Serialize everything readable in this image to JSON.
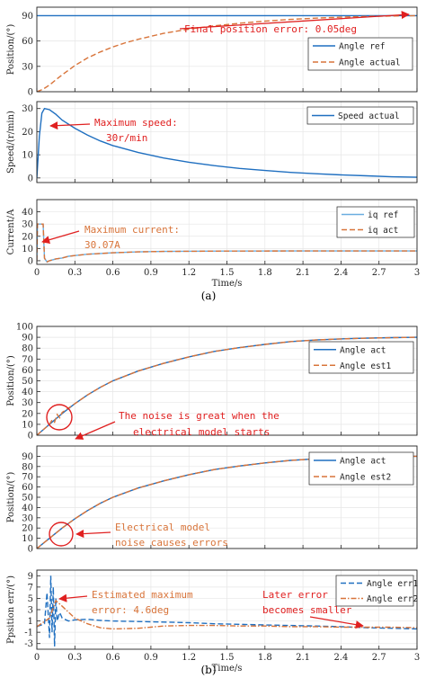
{
  "colors": {
    "blue": "#1f6fc0",
    "orange": "#d8743a",
    "red": "#e02020",
    "lightblue": "#6aaee0",
    "axis": "#222222",
    "grid": "#e6e6e6"
  },
  "captions": {
    "a": "(a)",
    "b": "(b)"
  },
  "xlabel": "Time/s",
  "chart_data": [
    {
      "type": "line",
      "ylabel": "Position/(°)",
      "xlim": [
        0,
        3
      ],
      "ylim": [
        0,
        100
      ],
      "yticks": [
        "0",
        "30",
        "60",
        "90"
      ],
      "show_xtick_labels": false,
      "legend": [
        "Angle ref",
        "Angle actual"
      ],
      "annotations": [
        "Final position error: 0.05deg"
      ],
      "series": [
        {
          "name": "Angle ref",
          "style": "solid",
          "color": "blue",
          "x": [
            0,
            3
          ],
          "y": [
            90,
            90
          ]
        },
        {
          "name": "Angle actual",
          "style": "dashed",
          "color": "orange",
          "x": [
            0,
            0.05,
            0.1,
            0.15,
            0.2,
            0.3,
            0.4,
            0.5,
            0.6,
            0.7,
            0.8,
            1.0,
            1.2,
            1.4,
            1.6,
            1.8,
            2.0,
            2.2,
            2.4,
            2.6,
            2.8,
            3.0
          ],
          "y": [
            0,
            3,
            8,
            14,
            20,
            31,
            40,
            47,
            53,
            58,
            62,
            69,
            74,
            78,
            81,
            83.5,
            85.5,
            87,
            88.2,
            89,
            89.6,
            89.95
          ]
        }
      ]
    },
    {
      "type": "line",
      "ylabel": "Speed/(r/min)",
      "xlim": [
        0,
        3
      ],
      "ylim": [
        -2,
        33
      ],
      "yticks": [
        "0",
        "10",
        "20",
        "30"
      ],
      "show_xtick_labels": false,
      "legend": [
        "Speed actual"
      ],
      "annotations": [
        "Maximum speed:",
        "30r/min"
      ],
      "series": [
        {
          "name": "Speed actual",
          "style": "solid",
          "color": "blue",
          "x": [
            0,
            0.02,
            0.04,
            0.06,
            0.1,
            0.15,
            0.2,
            0.3,
            0.4,
            0.5,
            0.6,
            0.8,
            1.0,
            1.2,
            1.4,
            1.6,
            1.8,
            2.0,
            2.2,
            2.4,
            2.6,
            2.8,
            3.0
          ],
          "y": [
            0,
            18,
            28,
            30,
            29.5,
            27.5,
            25,
            21.5,
            18.5,
            16,
            14,
            11,
            8.6,
            6.8,
            5.3,
            4.1,
            3.2,
            2.4,
            1.8,
            1.3,
            0.9,
            0.5,
            0.3
          ]
        }
      ]
    },
    {
      "type": "line",
      "ylabel": "Current/A",
      "xlim": [
        0,
        3
      ],
      "ylim": [
        -3,
        50
      ],
      "yticks": [
        "0",
        "10",
        "20",
        "30",
        "40"
      ],
      "xticks": [
        "0",
        "0.3",
        "0.6",
        "0.9",
        "1.2",
        "1.5",
        "1.8",
        "2.1",
        "2.4",
        "2.7",
        "3"
      ],
      "show_xtick_labels": true,
      "legend": [
        "iq ref",
        "iq act"
      ],
      "annotations": [
        "Maximum current:",
        "30.07A"
      ],
      "series": [
        {
          "name": "iq ref",
          "style": "solid",
          "color": "lightblue",
          "x": [
            0,
            0.005,
            0.05,
            0.06,
            0.08,
            0.1,
            0.15,
            0.2,
            0.25,
            0.3,
            0.4,
            0.5,
            0.6,
            0.8,
            1.0,
            1.5,
            2.0,
            2.5,
            3.0
          ],
          "y": [
            0,
            30,
            30,
            2,
            -1,
            0,
            1.5,
            2.2,
            3.6,
            4.2,
            5.3,
            5.9,
            6.5,
            7.2,
            7.6,
            7.9,
            8.0,
            8.0,
            8.0
          ]
        },
        {
          "name": "iq act",
          "style": "dashed",
          "color": "orange",
          "x": [
            0,
            0.005,
            0.05,
            0.06,
            0.08,
            0.1,
            0.15,
            0.2,
            0.25,
            0.3,
            0.4,
            0.5,
            0.6,
            0.8,
            1.0,
            1.5,
            2.0,
            2.5,
            3.0
          ],
          "y": [
            0,
            30.07,
            30,
            2,
            -1,
            0,
            1.5,
            2.2,
            3.6,
            4.2,
            5.3,
            5.9,
            6.5,
            7.2,
            7.6,
            7.9,
            8.0,
            8.0,
            8.0
          ]
        }
      ]
    },
    {
      "type": "line",
      "ylabel": "Position/(°)",
      "xlim": [
        0,
        3
      ],
      "ylim": [
        0,
        100
      ],
      "yticks": [
        "0",
        "10",
        "20",
        "30",
        "40",
        "50",
        "60",
        "70",
        "80",
        "90",
        "100"
      ],
      "show_xtick_labels": false,
      "legend": [
        "Angle act",
        "Angle est1"
      ],
      "annotations": [
        "The noise is great when the",
        "electrical model starts"
      ],
      "series": [
        {
          "name": "Angle act",
          "style": "solid",
          "color": "blue",
          "x": [
            0,
            0.1,
            0.2,
            0.3,
            0.4,
            0.5,
            0.6,
            0.8,
            1.0,
            1.2,
            1.4,
            1.6,
            1.8,
            2.0,
            2.2,
            2.4,
            2.6,
            2.8,
            3.0
          ],
          "y": [
            0,
            10,
            20,
            29,
            37,
            44,
            50,
            59,
            66,
            72,
            77,
            80.5,
            83.5,
            86,
            87.5,
            88.5,
            89.2,
            89.7,
            90
          ]
        },
        {
          "name": "Angle est1",
          "style": "dashed",
          "color": "orange",
          "x": [
            0,
            0.1,
            0.12,
            0.14,
            0.16,
            0.18,
            0.2,
            0.3,
            0.4,
            0.5,
            0.6,
            0.8,
            1.0,
            1.2,
            1.4,
            1.6,
            1.8,
            2.0,
            2.2,
            2.4,
            2.6,
            2.8,
            3.0
          ],
          "y": [
            0,
            10,
            14,
            12,
            19,
            16,
            21,
            29,
            37,
            44,
            50,
            59,
            66,
            72,
            77,
            80.5,
            83.5,
            86,
            87.5,
            88.5,
            89.2,
            89.7,
            90
          ]
        }
      ]
    },
    {
      "type": "line",
      "ylabel": "Position/(°)",
      "xlim": [
        0,
        3
      ],
      "ylim": [
        0,
        100
      ],
      "yticks": [
        "0",
        "10",
        "20",
        "30",
        "40",
        "50",
        "60",
        "70",
        "80",
        "90"
      ],
      "show_xtick_labels": false,
      "legend": [
        "Angle act",
        "Angle est2"
      ],
      "annotations": [
        "Electrical model",
        "noise causes errors"
      ],
      "series": [
        {
          "name": "Angle act",
          "style": "solid",
          "color": "blue",
          "x": [
            0,
            0.1,
            0.2,
            0.3,
            0.4,
            0.5,
            0.6,
            0.8,
            1.0,
            1.2,
            1.4,
            1.6,
            1.8,
            2.0,
            2.2,
            2.4,
            2.6,
            2.8,
            3.0
          ],
          "y": [
            0,
            10,
            20,
            29,
            37,
            44,
            50,
            59,
            66,
            72,
            77,
            80.5,
            83.5,
            86,
            87.5,
            88.5,
            89.2,
            89.7,
            90
          ]
        },
        {
          "name": "Angle est2",
          "style": "dashed",
          "color": "orange",
          "x": [
            0,
            0.1,
            0.2,
            0.3,
            0.4,
            0.5,
            0.6,
            0.8,
            1.0,
            1.2,
            1.4,
            1.6,
            1.8,
            2.0,
            2.2,
            2.4,
            2.6,
            2.8,
            3.0
          ],
          "y": [
            0,
            10,
            20,
            29,
            37,
            44,
            50,
            59,
            66,
            72,
            77,
            80.5,
            83.5,
            86,
            87.5,
            88.5,
            89.2,
            89.7,
            90
          ]
        }
      ]
    },
    {
      "type": "line",
      "ylabel": "Ppsition err/(°)",
      "xlim": [
        0,
        3
      ],
      "ylim": [
        -4,
        10
      ],
      "yticks": [
        "-3",
        "-1",
        "1",
        "3",
        "5",
        "7",
        "9"
      ],
      "xticks": [
        "0",
        "0.3",
        "0.6",
        "0.9",
        "1.2",
        "1.5",
        "1.8",
        "2.1",
        "2.4",
        "2.7",
        "3"
      ],
      "show_xtick_labels": true,
      "legend": [
        "Angle err1",
        "Angle err2"
      ],
      "annotations": [
        "Estimated maximum",
        "error: 4.6deg",
        "Later error",
        "becomes smaller"
      ],
      "series": [
        {
          "name": "Angle err1",
          "style": "dashed",
          "color": "blue",
          "x": [
            0,
            0.06,
            0.08,
            0.1,
            0.11,
            0.12,
            0.13,
            0.14,
            0.15,
            0.16,
            0.18,
            0.2,
            0.25,
            0.3,
            0.4,
            0.5,
            0.6,
            0.8,
            1.0,
            1.2,
            1.4,
            1.6,
            1.8,
            2.0,
            2.2,
            2.4,
            2.6,
            2.8,
            3.0
          ],
          "y": [
            0,
            0.5,
            6,
            -2,
            9,
            -1,
            7,
            -3.5,
            5,
            1,
            2.5,
            1.5,
            1,
            1.2,
            1.3,
            1.1,
            1.0,
            0.9,
            0.8,
            0.7,
            0.5,
            0.4,
            0.3,
            0.2,
            0.1,
            0,
            -0.2,
            -0.3,
            -0.4
          ]
        },
        {
          "name": "Angle err2",
          "style": "dashdot",
          "color": "orange",
          "x": [
            0,
            0.1,
            0.15,
            0.2,
            0.3,
            0.4,
            0.5,
            0.6,
            0.8,
            1.0,
            1.2,
            1.4,
            1.6,
            1.8,
            2.0,
            2.2,
            2.4,
            2.6,
            2.8,
            3.0
          ],
          "y": [
            0,
            1.5,
            4.6,
            3.6,
            1.5,
            0.5,
            -0.2,
            -0.4,
            -0.3,
            0.1,
            0.2,
            0.2,
            0.1,
            0.1,
            0,
            0,
            -0.1,
            -0.1,
            -0.1,
            -0.2
          ]
        }
      ]
    }
  ]
}
